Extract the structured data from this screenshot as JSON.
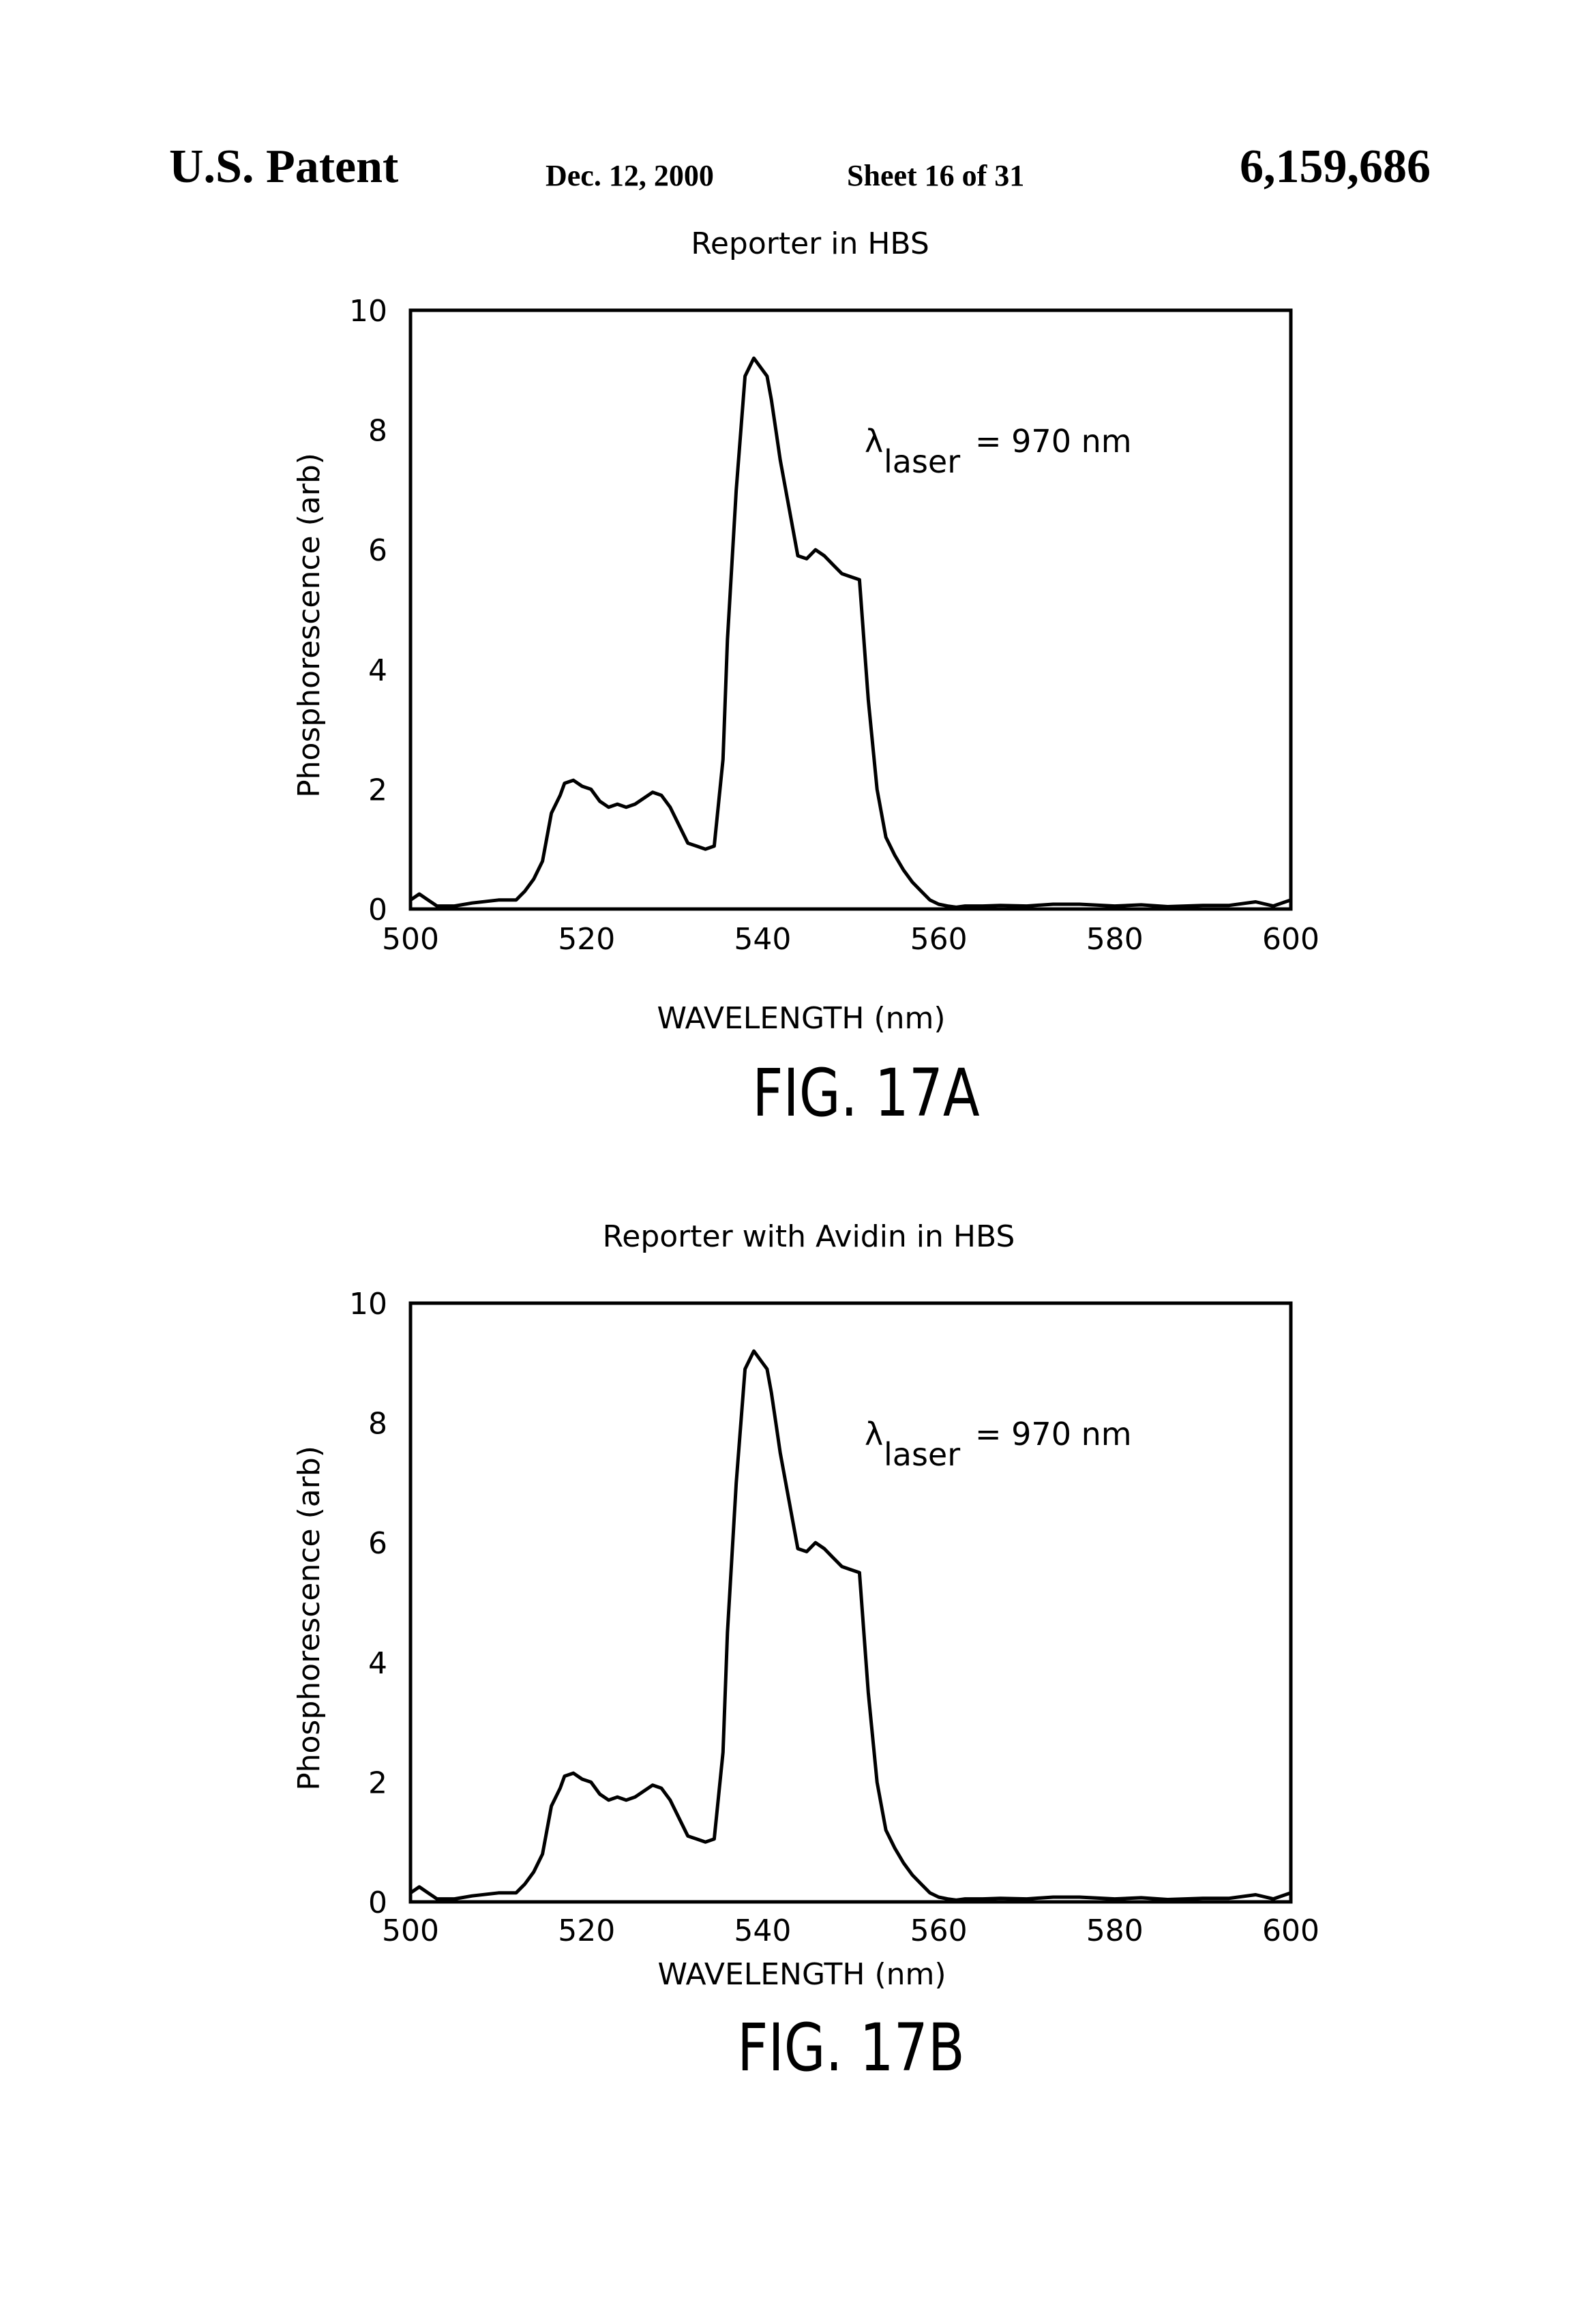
{
  "header": {
    "left": "U.S. Patent",
    "date": "Dec. 12, 2000",
    "sheet": "Sheet 16 of 31",
    "patent_number": "6,159,686"
  },
  "chart_data": [
    {
      "type": "line",
      "title": "Reporter in HBS",
      "xlabel": "WAVELENGTH (nm)",
      "ylabel": "Phosphorescence (arb)",
      "xlim": [
        500,
        600
      ],
      "ylim": [
        0,
        10
      ],
      "xticks": [
        "500",
        "520",
        "540",
        "560",
        "580",
        "600"
      ],
      "yticks": [
        "0",
        "2",
        "4",
        "6",
        "8",
        "10"
      ],
      "annotation": {
        "symbol": "λ",
        "subscript": "laser",
        "text": "= 970 nm"
      },
      "figure_label": "FIG. 17A",
      "grid": false,
      "legend": "none",
      "series": [
        {
          "x": [
            500,
            501,
            502,
            503,
            504,
            505,
            507,
            510,
            512,
            513,
            514,
            515,
            516,
            517,
            517.5,
            518.5,
            519.5,
            520.5,
            521.5,
            522.5,
            523.5,
            524.5,
            525.5,
            526.5,
            527.5,
            528.5,
            529.5,
            530.5,
            531.5,
            532.5,
            533.5,
            534.5,
            535.5,
            536,
            537,
            538,
            539,
            540,
            540.5,
            541,
            541.5,
            542,
            543,
            544,
            545,
            546,
            547,
            548,
            549,
            550,
            551,
            552,
            553,
            554,
            555,
            556,
            557,
            558,
            559,
            560,
            561,
            562,
            563,
            564,
            565,
            567,
            570,
            573,
            576,
            580,
            583,
            586,
            590,
            593,
            596,
            598,
            600
          ],
          "y": [
            0.15,
            0.25,
            0.15,
            0.05,
            0.05,
            0.05,
            0.1,
            0.15,
            0.15,
            0.3,
            0.5,
            0.8,
            1.6,
            1.9,
            2.1,
            2.15,
            2.05,
            2.0,
            1.8,
            1.7,
            1.75,
            1.7,
            1.75,
            1.85,
            1.95,
            1.9,
            1.7,
            1.4,
            1.1,
            1.05,
            1.0,
            1.05,
            2.5,
            4.5,
            7.0,
            8.9,
            9.2,
            9.0,
            8.9,
            8.5,
            8.0,
            7.5,
            6.7,
            5.9,
            5.85,
            6.0,
            5.9,
            5.75,
            5.6,
            5.55,
            5.5,
            3.5,
            2.0,
            1.2,
            0.9,
            0.65,
            0.45,
            0.3,
            0.15,
            0.08,
            0.05,
            0.03,
            0.05,
            0.05,
            0.05,
            0.06,
            0.05,
            0.08,
            0.08,
            0.05,
            0.07,
            0.04,
            0.06,
            0.06,
            0.12,
            0.05,
            0.15
          ]
        }
      ]
    },
    {
      "type": "line",
      "title": "Reporter with Avidin in HBS",
      "xlabel": "WAVELENGTH (nm)",
      "ylabel": "Phosphorescence (arb)",
      "xlim": [
        500,
        600
      ],
      "ylim": [
        0,
        10
      ],
      "xticks": [
        "500",
        "520",
        "540",
        "560",
        "580",
        "600"
      ],
      "yticks": [
        "0",
        "2",
        "4",
        "6",
        "8",
        "10"
      ],
      "annotation": {
        "symbol": "λ",
        "subscript": "laser",
        "text": "= 970 nm"
      },
      "figure_label": "FIG. 17B",
      "grid": false,
      "legend": "none",
      "series": [
        {
          "x": [
            500,
            501,
            502,
            503,
            504,
            505,
            507,
            510,
            512,
            513,
            514,
            515,
            516,
            517,
            517.5,
            518.5,
            519.5,
            520.5,
            521.5,
            522.5,
            523.5,
            524.5,
            525.5,
            526.5,
            527.5,
            528.5,
            529.5,
            530.5,
            531.5,
            532.5,
            533.5,
            534.5,
            535.5,
            536,
            537,
            538,
            539,
            540,
            540.5,
            541,
            541.5,
            542,
            543,
            544,
            545,
            546,
            547,
            548,
            549,
            550,
            551,
            552,
            553,
            554,
            555,
            556,
            557,
            558,
            559,
            560,
            561,
            562,
            563,
            564,
            565,
            567,
            570,
            573,
            576,
            580,
            583,
            586,
            590,
            593,
            596,
            598,
            600
          ],
          "y": [
            0.15,
            0.25,
            0.15,
            0.05,
            0.05,
            0.05,
            0.1,
            0.15,
            0.15,
            0.3,
            0.5,
            0.8,
            1.6,
            1.9,
            2.1,
            2.15,
            2.05,
            2.0,
            1.8,
            1.7,
            1.75,
            1.7,
            1.75,
            1.85,
            1.95,
            1.9,
            1.7,
            1.4,
            1.1,
            1.05,
            1.0,
            1.05,
            2.5,
            4.5,
            7.0,
            8.9,
            9.2,
            9.0,
            8.9,
            8.5,
            8.0,
            7.5,
            6.7,
            5.9,
            5.85,
            6.0,
            5.9,
            5.75,
            5.6,
            5.55,
            5.5,
            3.5,
            2.0,
            1.2,
            0.9,
            0.65,
            0.45,
            0.3,
            0.15,
            0.08,
            0.05,
            0.03,
            0.05,
            0.05,
            0.05,
            0.06,
            0.05,
            0.08,
            0.08,
            0.05,
            0.07,
            0.04,
            0.06,
            0.06,
            0.12,
            0.05,
            0.15
          ]
        }
      ]
    }
  ]
}
